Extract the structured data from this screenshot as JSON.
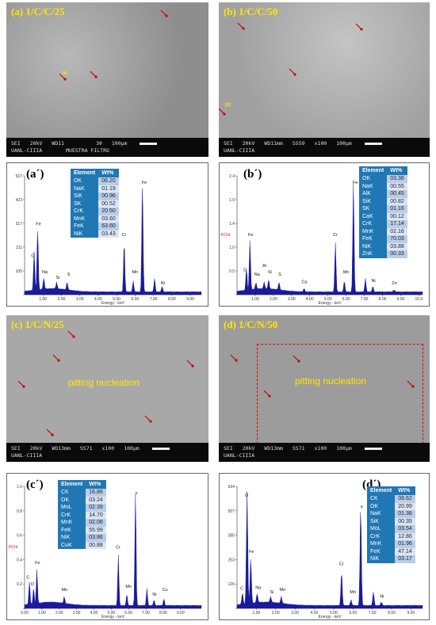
{
  "sem_panels": [
    {
      "label": "(a) 1/C/C/25",
      "bar": [
        "SEI",
        "20kV",
        "WD11",
        "",
        "MUESTRA FILTRO",
        "30",
        "100µm"
      ],
      "bar2": "UANL-CIIIA",
      "notes": [
        "pit"
      ]
    },
    {
      "label": "(b) 1/C/C/50",
      "bar": [
        "SEI",
        "20kV",
        "WD11mm",
        "SS59",
        "x100",
        "100µm"
      ],
      "bar2": "UANL-CIIIA",
      "notes": [
        "pit"
      ]
    },
    {
      "label": "(c) 1/C/N/25",
      "bar": [
        "SEI",
        "20kV",
        "WD13mm",
        "SS71",
        "x100",
        "100µm"
      ],
      "bar2": "UANL-CIIIA",
      "notes": [
        "pitting nucleation"
      ]
    },
    {
      "label": "(d) 1/C/N/50",
      "bar": [
        "SEI",
        "20kV",
        "WD13mm",
        "SS71",
        "x100",
        "100µm"
      ],
      "bar2": "UANL-CIIIA",
      "notes": [
        "pitting nucleation"
      ]
    }
  ],
  "eds_panels": [
    {
      "tag": "(a´)",
      "header": [
        "Element",
        "Wt%"
      ],
      "rows": [
        [
          "OK",
          "06.20"
        ],
        [
          "NaK",
          "01.19"
        ],
        [
          "SiK",
          "00.96"
        ],
        [
          "SK",
          "00.52"
        ],
        [
          "CrK",
          "20.50"
        ],
        [
          "MnK",
          "03.60"
        ],
        [
          "FeK",
          "63.60"
        ],
        [
          "NiK",
          "03.43"
        ]
      ],
      "yticks": [
        "527",
        "423",
        "317",
        "211",
        "105",
        ""
      ],
      "xticks": [
        "1.00",
        "2.00",
        "3.00",
        "4.00",
        "5.00",
        "6.00",
        "7.00",
        "8.00",
        "9.00"
      ],
      "xlabel": "Energy - keV",
      "kcnt": "",
      "peaks": [
        "O",
        "Fe",
        "Na",
        "Si",
        "S",
        "Cr",
        "Fe",
        "Mn",
        "Ni"
      ]
    },
    {
      "tag": "(b´)",
      "header": [
        "Element",
        "Wt%"
      ],
      "rows": [
        [
          "OK",
          "03.36"
        ],
        [
          "NaK",
          "00.55"
        ],
        [
          "AlK",
          "00.45"
        ],
        [
          "SiK",
          "00.82"
        ],
        [
          "SK",
          "01.16"
        ],
        [
          "CaK",
          "00.12"
        ],
        [
          "CrK",
          "17.14"
        ],
        [
          "MnK",
          "02.16"
        ],
        [
          "FeK",
          "70.03"
        ],
        [
          "NiK",
          "03.88"
        ],
        [
          "ZnK",
          "00.33"
        ]
      ],
      "yticks": [
        "2.4",
        "1.9",
        "1.4",
        "1.0",
        "0.5",
        ""
      ],
      "xticks": [
        "1.00",
        "2.00",
        "3.00",
        "4.00",
        "5.00",
        "6.00",
        "7.00",
        "8.00",
        "9.00",
        "10.0"
      ],
      "xlabel": "Energy - keV",
      "kcnt": "KCnt",
      "peaks": [
        "O",
        "Fe",
        "Na",
        "Al",
        "Si",
        "S",
        "Ca",
        "Cr",
        "Mn",
        "Fe",
        "Ni",
        "Zn"
      ]
    },
    {
      "tag": "(c´)",
      "header": [
        "Element",
        "Wt%"
      ],
      "rows": [
        [
          "CK",
          "16.86"
        ],
        [
          "OK",
          "03.24"
        ],
        [
          "MoL",
          "02.39"
        ],
        [
          "CrK",
          "14.70"
        ],
        [
          "MnK",
          "02.08"
        ],
        [
          "FeK",
          "55.99"
        ],
        [
          "NiK",
          "03.86"
        ],
        [
          "CuK",
          "00.88"
        ]
      ],
      "yticks": [
        "1.0",
        "0.8",
        "0.6",
        "0.4",
        "0.2",
        ""
      ],
      "xticks": [
        "0.00",
        "1.00",
        "2.00",
        "3.00",
        "4.00",
        "5.00",
        "6.00",
        "7.00",
        "8.00",
        "9.00"
      ],
      "xlabel": "Energy - keV",
      "kcnt": "KCnt",
      "peaks": [
        "C",
        "O",
        "Fe",
        "Mo",
        "Cr",
        "Mn",
        "e",
        "Ni",
        "Cu"
      ]
    },
    {
      "tag": "(d´)",
      "header": [
        "Element",
        "Wt%"
      ],
      "rows": [
        [
          "CK",
          "08.62"
        ],
        [
          "OK",
          "20.99"
        ],
        [
          "NaK",
          "01.38"
        ],
        [
          "SiK",
          "00.35"
        ],
        [
          "MoL",
          "03.54"
        ],
        [
          "CrK",
          "12.86"
        ],
        [
          "MnK",
          "01.96"
        ],
        [
          "FeK",
          "47.14"
        ],
        [
          "NiK",
          "03.17"
        ]
      ],
      "yticks": [
        "634",
        "507",
        "380",
        "253",
        "126",
        ""
      ],
      "xticks": [
        "1.00",
        "2.00",
        "3.00",
        "4.00",
        "5.00",
        "6.00",
        "7.00",
        "8.00",
        "9.00"
      ],
      "xlabel": "Energy - keV",
      "kcnt": "",
      "peaks": [
        "C",
        "O",
        "Fe",
        "Na",
        "Si",
        "Mo",
        "Cr",
        "Mn",
        "e",
        "Ni"
      ]
    }
  ],
  "colors": {
    "spectrum": "#1a1a9a",
    "tableHeader": "#1f77b4",
    "label": "#ffe600",
    "arrow": "#d00000"
  }
}
